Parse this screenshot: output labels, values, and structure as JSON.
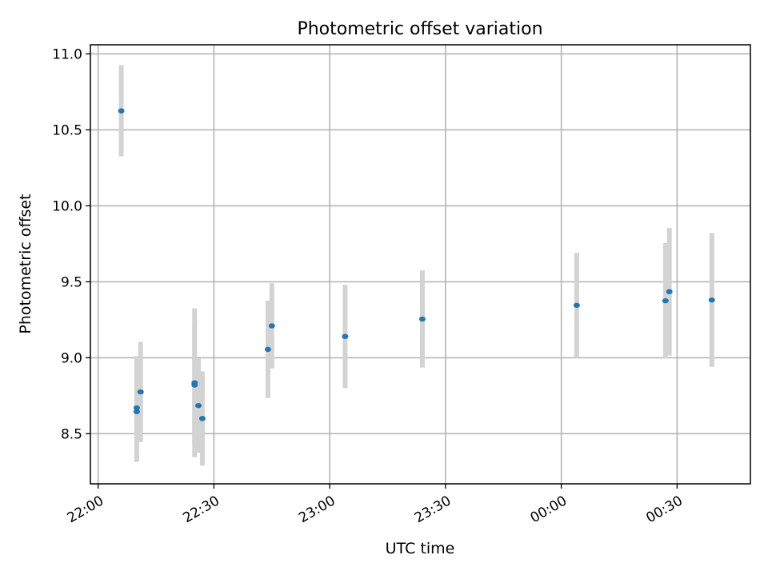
{
  "chart_data": {
    "type": "scatter",
    "title": "Photometric offset variation",
    "xlabel": "UTC time",
    "ylabel": "Photometric offset",
    "x_ticks": [
      "22:00",
      "22:30",
      "23:00",
      "23:30",
      "00:00",
      "00:30"
    ],
    "y_ticks": [
      "8.5",
      "9.0",
      "9.5",
      "10.0",
      "10.5",
      "11.0"
    ],
    "xlim": [
      "21:58",
      "00:49"
    ],
    "ylim": [
      8.17,
      11.06
    ],
    "grid": true,
    "colors": {
      "marker": "#1f77b4",
      "errorbar": "#d3d3d3",
      "grid": "#b0b0b0"
    },
    "points": [
      {
        "x": "22:06",
        "y": 10.625,
        "yerr": 0.3
      },
      {
        "x": "22:10",
        "y": 8.67,
        "yerr": 0.34
      },
      {
        "x": "22:10",
        "y": 8.645,
        "yerr": 0.33
      },
      {
        "x": "22:11",
        "y": 8.775,
        "yerr": 0.33
      },
      {
        "x": "22:25",
        "y": 8.835,
        "yerr": 0.49
      },
      {
        "x": "22:25",
        "y": 8.82,
        "yerr": 0.4
      },
      {
        "x": "22:26",
        "y": 8.685,
        "yerr": 0.31
      },
      {
        "x": "22:27",
        "y": 8.6,
        "yerr": 0.31
      },
      {
        "x": "22:44",
        "y": 9.055,
        "yerr": 0.32
      },
      {
        "x": "22:45",
        "y": 9.21,
        "yerr": 0.28
      },
      {
        "x": "23:04",
        "y": 9.14,
        "yerr": 0.34
      },
      {
        "x": "23:24",
        "y": 9.255,
        "yerr": 0.32
      },
      {
        "x": "00:04",
        "y": 9.345,
        "yerr": 0.345
      },
      {
        "x": "00:27",
        "y": 9.375,
        "yerr": 0.38
      },
      {
        "x": "00:28",
        "y": 9.435,
        "yerr": 0.42
      },
      {
        "x": "00:39",
        "y": 9.38,
        "yerr": 0.44
      }
    ]
  }
}
